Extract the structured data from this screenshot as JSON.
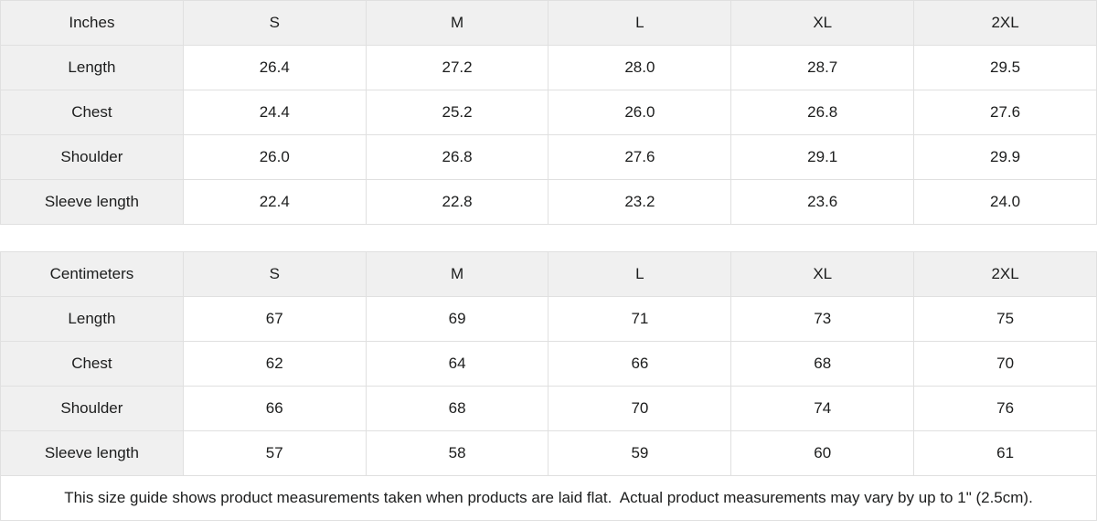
{
  "sizes": [
    "S",
    "M",
    "L",
    "XL",
    "2XL"
  ],
  "tables": [
    {
      "unit": "Inches",
      "rows": [
        {
          "label": "Length",
          "values": [
            "26.4",
            "27.2",
            "28.0",
            "28.7",
            "29.5"
          ]
        },
        {
          "label": "Chest",
          "values": [
            "24.4",
            "25.2",
            "26.0",
            "26.8",
            "27.6"
          ]
        },
        {
          "label": "Shoulder",
          "values": [
            "26.0",
            "26.8",
            "27.6",
            "29.1",
            "29.9"
          ]
        },
        {
          "label": "Sleeve length",
          "values": [
            "22.4",
            "22.8",
            "23.2",
            "23.6",
            "24.0"
          ]
        }
      ]
    },
    {
      "unit": "Centimeters",
      "rows": [
        {
          "label": "Length",
          "values": [
            "67",
            "69",
            "71",
            "73",
            "75"
          ]
        },
        {
          "label": "Chest",
          "values": [
            "62",
            "64",
            "66",
            "68",
            "70"
          ]
        },
        {
          "label": "Shoulder",
          "values": [
            "66",
            "68",
            "70",
            "74",
            "76"
          ]
        },
        {
          "label": "Sleeve length",
          "values": [
            "57",
            "58",
            "59",
            "60",
            "61"
          ]
        }
      ]
    }
  ],
  "footer_note": "This size guide shows product measurements taken when products are laid flat.  Actual product measurements may vary by up to 1\" (2.5cm).",
  "colors": {
    "header_background": "#f0f0f0",
    "border": "#e0e0e0",
    "text": "#1c1d1d",
    "background": "#ffffff"
  }
}
